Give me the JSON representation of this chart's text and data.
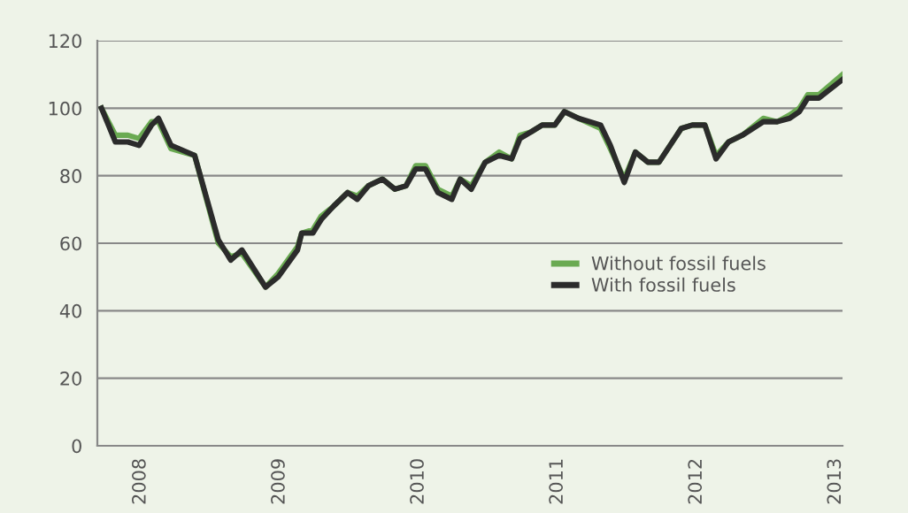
{
  "chart_data": {
    "type": "line",
    "x": [
      2007.72,
      2007.82,
      2007.91,
      2007.99,
      2008.08,
      2008.13,
      2008.22,
      2008.39,
      2008.56,
      2008.65,
      2008.73,
      2008.9,
      2008.99,
      2009.13,
      2009.16,
      2009.24,
      2009.3,
      2009.39,
      2009.49,
      2009.56,
      2009.64,
      2009.74,
      2009.83,
      2009.91,
      2009.98,
      2010.05,
      2010.14,
      2010.24,
      2010.3,
      2010.38,
      2010.48,
      2010.58,
      2010.67,
      2010.73,
      2010.81,
      2010.89,
      2010.98,
      2011.05,
      2011.15,
      2011.31,
      2011.38,
      2011.48,
      2011.56,
      2011.65,
      2011.73,
      2011.89,
      2011.97,
      2012.06,
      2012.14,
      2012.23,
      2012.33,
      2012.48,
      2012.58,
      2012.67,
      2012.74,
      2012.8,
      2012.88,
      2013.05
    ],
    "series": [
      {
        "name": "Without fossil fuels",
        "color": "#6aaa52",
        "values": [
          100,
          92,
          92,
          91,
          96,
          96,
          88,
          86,
          60,
          56,
          57,
          47,
          51,
          59,
          63,
          64,
          68,
          71,
          75,
          74,
          77,
          79,
          76,
          77,
          83,
          83,
          76,
          74,
          79,
          77,
          84,
          87,
          85,
          92,
          93,
          95,
          95,
          99,
          97,
          94,
          88,
          79,
          87,
          84,
          84,
          94,
          95,
          95,
          86,
          90,
          92,
          97,
          96,
          98,
          100,
          104,
          104,
          110
        ]
      },
      {
        "name": "With fossil fuels",
        "color": "#2b2b2b",
        "values": [
          100,
          90,
          90,
          89,
          95,
          97,
          89,
          86,
          61,
          55,
          58,
          47,
          50,
          58,
          63,
          63,
          67,
          71,
          75,
          73,
          77,
          79,
          76,
          77,
          82,
          82,
          75,
          73,
          79,
          76,
          84,
          86,
          85,
          91,
          93,
          95,
          95,
          99,
          97,
          95,
          89,
          78,
          87,
          84,
          84,
          94,
          95,
          95,
          85,
          90,
          92,
          96,
          96,
          97,
          99,
          103,
          103,
          108.5
        ]
      }
    ],
    "xlim": [
      2007.69,
      2013.05
    ],
    "xticks": [
      2008,
      2009,
      2010,
      2011,
      2012,
      2013
    ],
    "ylim": [
      0,
      120
    ],
    "yticks": [
      0,
      20,
      40,
      60,
      80,
      100,
      120
    ],
    "grid": "y",
    "legend": "right",
    "marker": "none",
    "line_style": "solid"
  }
}
